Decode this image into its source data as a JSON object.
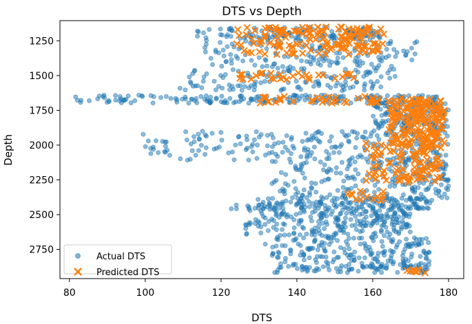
{
  "chart_data": {
    "type": "scatter",
    "title": "DTS vs Depth",
    "xlabel": "DTS",
    "ylabel": "Depth",
    "xlim": [
      77.5,
      184.0
    ],
    "ylim": [
      2960,
      1105
    ],
    "y_inverted": true,
    "xticks": [
      80,
      100,
      120,
      140,
      160,
      180
    ],
    "yticks": [
      1250,
      1500,
      1750,
      2000,
      2250,
      2500,
      2750
    ],
    "grid": false,
    "legend_position": "lower-left",
    "series": [
      {
        "name": "Actual DTS",
        "marker": "circle",
        "color": "#1f77b4",
        "clusters": [
          {
            "depth_range": [
              1150,
              1250
            ],
            "dts_range": [
              113,
              162
            ],
            "count": 140
          },
          {
            "depth_range": [
              1250,
              1400
            ],
            "dts_range": [
              115,
              172
            ],
            "count": 110
          },
          {
            "depth_range": [
              1390,
              1520
            ],
            "dts_range": [
              110,
              166
            ],
            "count": 90
          },
          {
            "depth_range": [
              1540,
              1610
            ],
            "dts_range": [
              109,
              165
            ],
            "count": 70
          },
          {
            "depth_range": [
              1640,
              1700
            ],
            "dts_range": [
              81,
              179
            ],
            "count": 200
          },
          {
            "depth_range": [
              1690,
              1900
            ],
            "dts_range": [
              160,
              180
            ],
            "count": 170
          },
          {
            "depth_range": [
              1900,
              2110
            ],
            "dts_range": [
              99,
              180
            ],
            "count": 220
          },
          {
            "depth_range": [
              2100,
              2390
            ],
            "dts_range": [
              133,
              180
            ],
            "count": 220
          },
          {
            "depth_range": [
              2380,
              2460
            ],
            "dts_range": [
              122,
              176
            ],
            "count": 160
          },
          {
            "depth_range": [
              2460,
              2650
            ],
            "dts_range": [
              126,
              170
            ],
            "count": 230
          },
          {
            "depth_range": [
              2650,
              2880
            ],
            "dts_range": [
              131,
              175
            ],
            "count": 210
          },
          {
            "depth_range": [
              2870,
              2920
            ],
            "dts_range": [
              131,
              175
            ],
            "count": 60
          }
        ]
      },
      {
        "name": "Predicted DTS",
        "marker": "x",
        "color": "#ff7f0e",
        "clusters": [
          {
            "depth_range": [
              1150,
              1350
            ],
            "dts_range": [
              124,
              163
            ],
            "count": 150
          },
          {
            "depth_range": [
              1480,
              1530
            ],
            "dts_range": [
              123,
              155
            ],
            "count": 30
          },
          {
            "depth_range": [
              1650,
              1700
            ],
            "dts_range": [
              122,
              172
            ],
            "count": 40
          },
          {
            "depth_range": [
              1670,
              2000
            ],
            "dts_range": [
              164,
              179
            ],
            "count": 170
          },
          {
            "depth_range": [
              1980,
              2270
            ],
            "dts_range": [
              158,
              178
            ],
            "count": 110
          },
          {
            "depth_range": [
              2330,
              2400
            ],
            "dts_range": [
              153,
              163
            ],
            "count": 14
          },
          {
            "depth_range": [
              2890,
              2920
            ],
            "dts_range": [
              169,
              174
            ],
            "count": 10
          }
        ]
      }
    ]
  }
}
